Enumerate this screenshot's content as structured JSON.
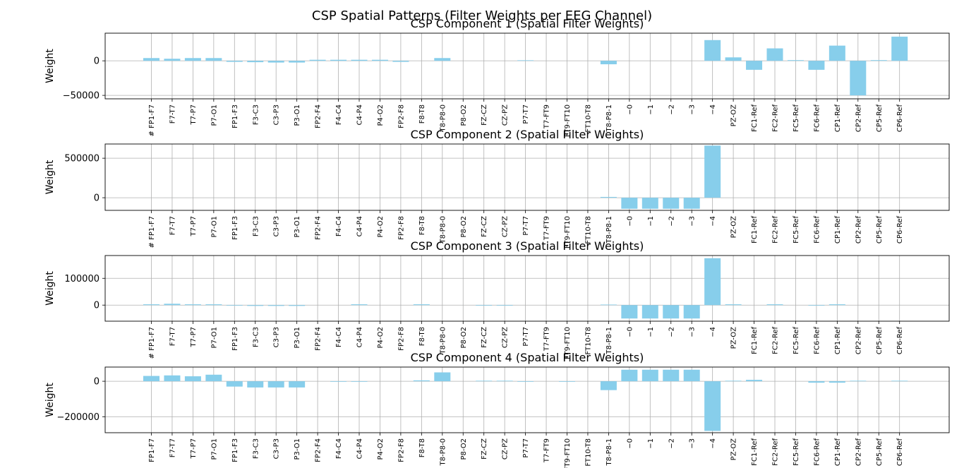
{
  "figure": {
    "suptitle": "CSP Spatial Patterns (Filter Weights per EEG Channel)"
  },
  "colors": {
    "bar": "#87ceeb",
    "grid": "#b0b0b0",
    "axes": "#000000"
  },
  "chart_data": [
    {
      "type": "bar",
      "title": "CSP Component 1 (Spatial Filter Weights)",
      "ylabel": "Weight",
      "xlabel": "",
      "grid": true,
      "ylim": [
        -55000,
        40000
      ],
      "yticks": [
        -50000,
        0
      ],
      "ytick_labels": [
        "−50000",
        "0"
      ],
      "categories": [
        "# FP1-F7",
        "F7-T7",
        "T7-P7",
        "P7-O1",
        "FP1-F3",
        "F3-C3",
        "C3-P3",
        "P3-O1",
        "FP2-F4",
        "F4-C4",
        "C4-P4",
        "P4-O2",
        "FP2-F8",
        "F8-T8",
        "T8-P8-0",
        "P8-O2",
        "FZ-CZ",
        "CZ-PZ",
        "P7-T7",
        "T7-FT9",
        "FT9-FT10",
        "FT10-T8",
        "T8-P8-1",
        "−0",
        "−1",
        "−2",
        "−3",
        "−4",
        "PZ-OZ",
        "FC1-Ref",
        "FC2-Ref",
        "FC5-Ref",
        "FC6-Ref",
        "CP1-Ref",
        "CP2-Ref",
        "CP5-Ref",
        "CP6-Ref"
      ],
      "values": [
        4000,
        3000,
        4000,
        4000,
        -1500,
        -2000,
        -2500,
        -2500,
        1500,
        1500,
        1500,
        1500,
        -1500,
        0,
        4000,
        0,
        0,
        0,
        800,
        0,
        0,
        0,
        -5000,
        0,
        0,
        0,
        0,
        30000,
        5000,
        -13000,
        18000,
        1000,
        -13000,
        22000,
        -50000,
        1000,
        35000
      ]
    },
    {
      "type": "bar",
      "title": "CSP Component 2 (Spatial Filter Weights)",
      "ylabel": "Weight",
      "xlabel": "",
      "grid": true,
      "ylim": [
        -160000,
        680000
      ],
      "yticks": [
        0,
        500000
      ],
      "ytick_labels": [
        "0",
        "500000"
      ],
      "categories": [
        "# FP1-F7",
        "F7-T7",
        "T7-P7",
        "P7-O1",
        "FP1-F3",
        "F3-C3",
        "C3-P3",
        "P3-O1",
        "FP2-F4",
        "F4-C4",
        "C4-P4",
        "P4-O2",
        "FP2-F8",
        "F8-T8",
        "T8-P8-0",
        "P8-O2",
        "FZ-CZ",
        "CZ-PZ",
        "P7-T7",
        "T7-FT9",
        "FT9-FT10",
        "FT10-T8",
        "T8-P8-1",
        "−0",
        "−1",
        "−2",
        "−3",
        "−4",
        "PZ-OZ",
        "FC1-Ref",
        "FC2-Ref",
        "FC5-Ref",
        "FC6-Ref",
        "CP1-Ref",
        "CP2-Ref",
        "CP5-Ref",
        "CP6-Ref"
      ],
      "values": [
        0,
        0,
        0,
        0,
        0,
        0,
        0,
        0,
        0,
        0,
        0,
        0,
        0,
        0,
        0,
        0,
        0,
        0,
        0,
        0,
        0,
        0,
        10000,
        -140000,
        -140000,
        -140000,
        -140000,
        660000,
        0,
        0,
        0,
        0,
        0,
        0,
        0,
        0,
        0
      ]
    },
    {
      "type": "bar",
      "title": "CSP Component 3 (Spatial Filter Weights)",
      "ylabel": "Weight",
      "xlabel": "",
      "grid": true,
      "ylim": [
        -60000,
        185000
      ],
      "yticks": [
        0,
        100000
      ],
      "ytick_labels": [
        "0",
        "100000"
      ],
      "categories": [
        "# FP1-F7",
        "F7-T7",
        "T7-P7",
        "P7-O1",
        "FP1-F3",
        "F3-C3",
        "C3-P3",
        "P3-O1",
        "FP2-F4",
        "F4-C4",
        "C4-P4",
        "P4-O2",
        "FP2-F8",
        "F8-T8",
        "T8-P8-0",
        "P8-O2",
        "FZ-CZ",
        "CZ-PZ",
        "P7-T7",
        "T7-FT9",
        "FT9-FT10",
        "FT10-T8",
        "T8-P8-1",
        "−0",
        "−1",
        "−2",
        "−3",
        "−4",
        "PZ-OZ",
        "FC1-Ref",
        "FC2-Ref",
        "FC5-Ref",
        "FC6-Ref",
        "CP1-Ref",
        "CP2-Ref",
        "CP5-Ref",
        "CP6-Ref"
      ],
      "values": [
        3000,
        5000,
        3000,
        3000,
        -2000,
        -3000,
        -3000,
        -3000,
        0,
        0,
        3000,
        0,
        0,
        3000,
        0,
        0,
        -2000,
        -2000,
        0,
        0,
        0,
        0,
        2000,
        -50000,
        -50000,
        -50000,
        -50000,
        175000,
        3000,
        0,
        3000,
        0,
        -2000,
        3000,
        0,
        0,
        0
      ]
    },
    {
      "type": "bar",
      "title": "CSP Component 4 (Spatial Filter Weights)",
      "ylabel": "Weight",
      "xlabel": "",
      "grid": true,
      "ylim": [
        -290000,
        80000
      ],
      "yticks": [
        -200000,
        0
      ],
      "ytick_labels": [
        "−200000",
        "0"
      ],
      "categories": [
        "FP1-F7",
        "F7-T7",
        "T7-P7",
        "P7-O1",
        "FP1-F3",
        "F3-C3",
        "C3-P3",
        "P3-O1",
        "FP2-F4",
        "F4-C4",
        "C4-P4",
        "P4-O2",
        "FP2-F8",
        "F8-T8",
        "T8-P8-0",
        "P8-O2",
        "FZ-CZ",
        "CZ-PZ",
        "P7-T7",
        "T7-FT9",
        "FT9-FT10",
        "FT10-T8",
        "T8-P8-1",
        "−0",
        "−1",
        "−2",
        "−3",
        "−4",
        "PZ-OZ",
        "FC1-Ref",
        "FC2-Ref",
        "FC5-Ref",
        "FC6-Ref",
        "CP1-Ref",
        "CP2-Ref",
        "CP5-Ref",
        "CP6-Ref"
      ],
      "values": [
        30000,
        33000,
        28000,
        37000,
        -30000,
        -35000,
        -35000,
        -35000,
        0,
        -3000,
        -3000,
        0,
        0,
        5000,
        50000,
        0,
        3000,
        3000,
        -3000,
        0,
        -3000,
        0,
        -50000,
        65000,
        65000,
        65000,
        65000,
        -280000,
        3000,
        8000,
        0,
        0,
        -8000,
        -8000,
        3000,
        0,
        3000
      ]
    }
  ]
}
